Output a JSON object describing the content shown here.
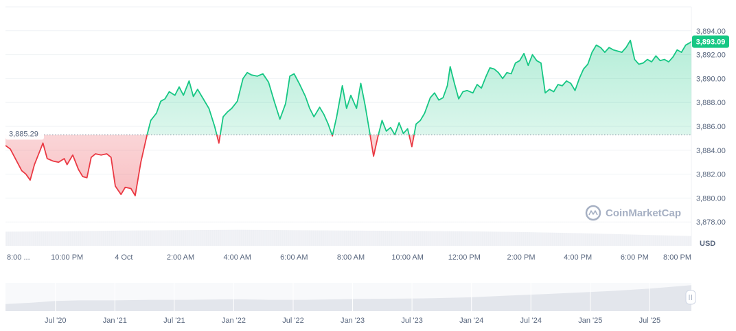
{
  "chart_data": {
    "type": "line",
    "title": "",
    "xlabel": "",
    "ylabel": "",
    "unit_label": "USD",
    "baseline_value": 3885.29,
    "baseline_label": "3,885.29",
    "current_value": 3893.09,
    "current_label": "3,893.09",
    "watermark": "CoinMarketCap",
    "ylim": [
      3876.0,
      3896.0
    ],
    "yticks": [
      3878,
      3880,
      3882,
      3884,
      3886,
      3888,
      3890,
      3892,
      3894
    ],
    "ytick_labels": [
      "3,878.00",
      "3,880.00",
      "3,882.00",
      "3,884.00",
      "3,886.00",
      "3,888.00",
      "3,890.00",
      "3,892.00",
      "3,894.00"
    ],
    "xlim": [
      19.83,
      44.0
    ],
    "xticks": [
      20,
      22,
      24,
      26,
      28,
      30,
      32,
      34,
      36,
      38,
      40,
      42,
      44
    ],
    "xtick_labels": [
      "8:00 ...",
      "10:00 PM",
      "4 Oct",
      "2:00 AM",
      "4:00 AM",
      "6:00 AM",
      "8:00 AM",
      "10:00 AM",
      "12:00 PM",
      "2:00 PM",
      "4:00 PM",
      "6:00 PM",
      "8:00 PM"
    ],
    "x_unit": "hours since 00:00 of the day before 4 Oct",
    "colors": {
      "up": "#16c784",
      "down": "#ea3943",
      "label_bg": "#16c784"
    },
    "series": [
      {
        "points": [
          [
            19.83,
            3884.4
          ],
          [
            20.0,
            3884.1
          ],
          [
            20.2,
            3883.2
          ],
          [
            20.4,
            3882.3
          ],
          [
            20.55,
            3882.0
          ],
          [
            20.7,
            3881.5
          ],
          [
            20.85,
            3882.8
          ],
          [
            21.0,
            3883.7
          ],
          [
            21.15,
            3884.6
          ],
          [
            21.3,
            3883.3
          ],
          [
            21.5,
            3883.1
          ],
          [
            21.7,
            3883.0
          ],
          [
            21.9,
            3883.3
          ],
          [
            22.0,
            3882.8
          ],
          [
            22.2,
            3883.6
          ],
          [
            22.4,
            3882.4
          ],
          [
            22.55,
            3881.8
          ],
          [
            22.7,
            3881.7
          ],
          [
            22.85,
            3883.4
          ],
          [
            23.0,
            3883.7
          ],
          [
            23.2,
            3883.6
          ],
          [
            23.4,
            3883.7
          ],
          [
            23.55,
            3883.4
          ],
          [
            23.7,
            3881.0
          ],
          [
            23.9,
            3880.3
          ],
          [
            24.05,
            3880.9
          ],
          [
            24.25,
            3880.8
          ],
          [
            24.4,
            3880.2
          ],
          [
            24.6,
            3883.0
          ],
          [
            24.8,
            3885.1
          ],
          [
            24.95,
            3886.5
          ],
          [
            25.15,
            3887.1
          ],
          [
            25.3,
            3888.1
          ],
          [
            25.45,
            3888.3
          ],
          [
            25.6,
            3888.9
          ],
          [
            25.8,
            3888.6
          ],
          [
            25.95,
            3889.3
          ],
          [
            26.1,
            3888.6
          ],
          [
            26.3,
            3889.8
          ],
          [
            26.45,
            3888.5
          ],
          [
            26.6,
            3889.1
          ],
          [
            26.8,
            3888.3
          ],
          [
            27.0,
            3887.5
          ],
          [
            27.2,
            3886.0
          ],
          [
            27.35,
            3884.6
          ],
          [
            27.5,
            3886.8
          ],
          [
            27.65,
            3887.2
          ],
          [
            27.8,
            3887.5
          ],
          [
            28.0,
            3888.1
          ],
          [
            28.2,
            3890.0
          ],
          [
            28.35,
            3890.5
          ],
          [
            28.5,
            3890.3
          ],
          [
            28.7,
            3890.2
          ],
          [
            28.9,
            3890.4
          ],
          [
            29.1,
            3889.7
          ],
          [
            29.3,
            3888.1
          ],
          [
            29.5,
            3886.6
          ],
          [
            29.7,
            3887.9
          ],
          [
            29.85,
            3890.2
          ],
          [
            30.0,
            3890.4
          ],
          [
            30.2,
            3889.5
          ],
          [
            30.4,
            3888.5
          ],
          [
            30.55,
            3887.5
          ],
          [
            30.7,
            3886.8
          ],
          [
            30.9,
            3887.6
          ],
          [
            31.05,
            3887.0
          ],
          [
            31.2,
            3886.2
          ],
          [
            31.35,
            3885.2
          ],
          [
            31.5,
            3886.8
          ],
          [
            31.7,
            3889.4
          ],
          [
            31.85,
            3887.5
          ],
          [
            32.0,
            3888.6
          ],
          [
            32.2,
            3887.5
          ],
          [
            32.35,
            3889.6
          ],
          [
            32.5,
            3887.8
          ],
          [
            32.65,
            3885.7
          ],
          [
            32.8,
            3883.5
          ],
          [
            32.95,
            3885.1
          ],
          [
            33.1,
            3886.5
          ],
          [
            33.25,
            3885.6
          ],
          [
            33.4,
            3885.9
          ],
          [
            33.55,
            3885.3
          ],
          [
            33.7,
            3886.3
          ],
          [
            33.85,
            3885.4
          ],
          [
            34.0,
            3885.8
          ],
          [
            34.15,
            3884.3
          ],
          [
            34.3,
            3886.2
          ],
          [
            34.45,
            3886.5
          ],
          [
            34.6,
            3887.1
          ],
          [
            34.8,
            3888.4
          ],
          [
            34.95,
            3888.8
          ],
          [
            35.1,
            3888.2
          ],
          [
            35.25,
            3888.4
          ],
          [
            35.4,
            3889.4
          ],
          [
            35.5,
            3891.0
          ],
          [
            35.65,
            3889.6
          ],
          [
            35.8,
            3888.3
          ],
          [
            35.95,
            3888.9
          ],
          [
            36.1,
            3889.0
          ],
          [
            36.3,
            3888.8
          ],
          [
            36.45,
            3889.5
          ],
          [
            36.6,
            3889.2
          ],
          [
            36.75,
            3890.1
          ],
          [
            36.9,
            3890.9
          ],
          [
            37.05,
            3890.8
          ],
          [
            37.2,
            3890.5
          ],
          [
            37.35,
            3890.0
          ],
          [
            37.5,
            3890.5
          ],
          [
            37.65,
            3890.4
          ],
          [
            37.8,
            3891.3
          ],
          [
            37.95,
            3891.5
          ],
          [
            38.1,
            3892.1
          ],
          [
            38.25,
            3891.1
          ],
          [
            38.4,
            3892.0
          ],
          [
            38.55,
            3891.5
          ],
          [
            38.7,
            3891.3
          ],
          [
            38.85,
            3888.8
          ],
          [
            39.0,
            3889.1
          ],
          [
            39.15,
            3888.9
          ],
          [
            39.3,
            3889.5
          ],
          [
            39.45,
            3889.4
          ],
          [
            39.6,
            3889.8
          ],
          [
            39.75,
            3889.6
          ],
          [
            39.9,
            3889.0
          ],
          [
            40.05,
            3890.0
          ],
          [
            40.2,
            3890.8
          ],
          [
            40.35,
            3891.2
          ],
          [
            40.5,
            3892.2
          ],
          [
            40.65,
            3892.8
          ],
          [
            40.8,
            3892.6
          ],
          [
            40.95,
            3892.2
          ],
          [
            41.1,
            3892.6
          ],
          [
            41.25,
            3892.4
          ],
          [
            41.4,
            3892.3
          ],
          [
            41.55,
            3892.2
          ],
          [
            41.7,
            3892.6
          ],
          [
            41.85,
            3893.2
          ],
          [
            42.0,
            3891.6
          ],
          [
            42.15,
            3891.2
          ],
          [
            42.3,
            3891.3
          ],
          [
            42.45,
            3891.6
          ],
          [
            42.6,
            3891.4
          ],
          [
            42.75,
            3891.9
          ],
          [
            42.9,
            3891.5
          ],
          [
            43.05,
            3891.6
          ],
          [
            43.2,
            3891.4
          ],
          [
            43.35,
            3891.8
          ],
          [
            43.5,
            3892.4
          ],
          [
            43.65,
            3892.2
          ],
          [
            43.8,
            3892.8
          ],
          [
            43.95,
            3893.0
          ],
          [
            44.0,
            3893.09
          ]
        ]
      }
    ],
    "volume_series": [
      [
        19.83,
        0.39
      ],
      [
        22.0,
        0.4
      ],
      [
        24.0,
        0.42
      ],
      [
        26.0,
        0.43
      ],
      [
        28.0,
        0.44
      ],
      [
        30.0,
        0.43
      ],
      [
        32.0,
        0.42
      ],
      [
        34.0,
        0.41
      ],
      [
        36.0,
        0.4
      ],
      [
        38.0,
        0.38
      ],
      [
        40.0,
        0.35
      ],
      [
        42.0,
        0.31
      ],
      [
        44.0,
        0.27
      ]
    ],
    "navigator": {
      "tick_labels": [
        "Jul '20",
        "Jan '21",
        "Jul '21",
        "Jan '22",
        "Jul '22",
        "Jan '23",
        "Jul '23",
        "Jan '24",
        "Jul '24",
        "Jan '25",
        "Jul '25"
      ],
      "tick_values": [
        2020.5,
        2021.0,
        2021.5,
        2022.0,
        2022.5,
        2023.0,
        2023.5,
        2024.0,
        2024.5,
        2025.0,
        2025.5
      ],
      "xlim": [
        2020.08,
        2025.85
      ],
      "overview": [
        [
          2020.08,
          0.25
        ],
        [
          2020.3,
          0.3
        ],
        [
          2020.5,
          0.36
        ],
        [
          2020.7,
          0.38
        ],
        [
          2021.0,
          0.38
        ],
        [
          2021.3,
          0.4
        ],
        [
          2021.6,
          0.4
        ],
        [
          2022.0,
          0.42
        ],
        [
          2022.3,
          0.4
        ],
        [
          2022.6,
          0.4
        ],
        [
          2023.0,
          0.43
        ],
        [
          2023.3,
          0.44
        ],
        [
          2023.6,
          0.45
        ],
        [
          2024.0,
          0.49
        ],
        [
          2024.3,
          0.55
        ],
        [
          2024.6,
          0.6
        ],
        [
          2024.9,
          0.66
        ],
        [
          2025.2,
          0.72
        ],
        [
          2025.5,
          0.8
        ],
        [
          2025.85,
          0.92
        ]
      ]
    }
  }
}
